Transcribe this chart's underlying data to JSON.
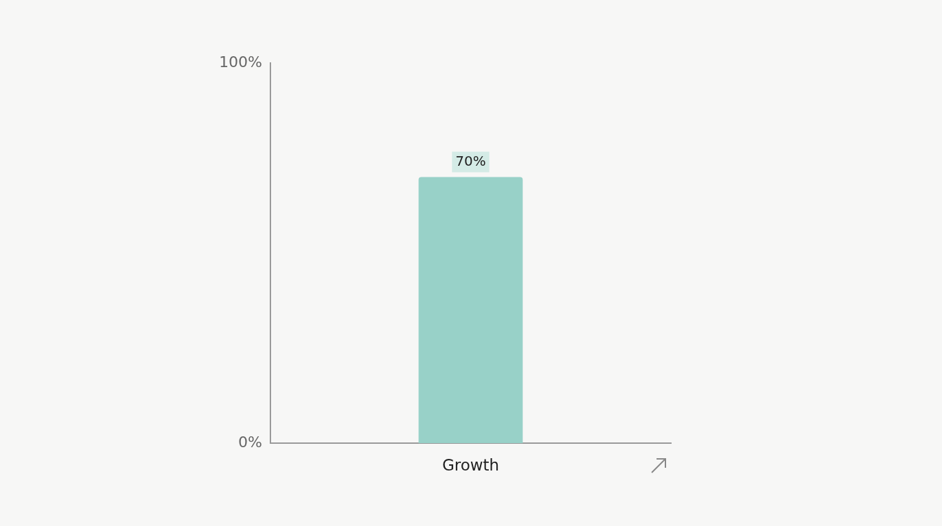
{
  "chart_data": {
    "type": "bar",
    "categories": [
      "Growth"
    ],
    "values": [
      70
    ],
    "color": "#98d1c8",
    "value_labels": [
      "70%"
    ],
    "ylim": [
      0,
      100
    ],
    "yticks": [
      {
        "value": 0,
        "label": "0%"
      },
      {
        "value": 100,
        "label": "100%"
      }
    ],
    "grid": false,
    "legend": false
  }
}
